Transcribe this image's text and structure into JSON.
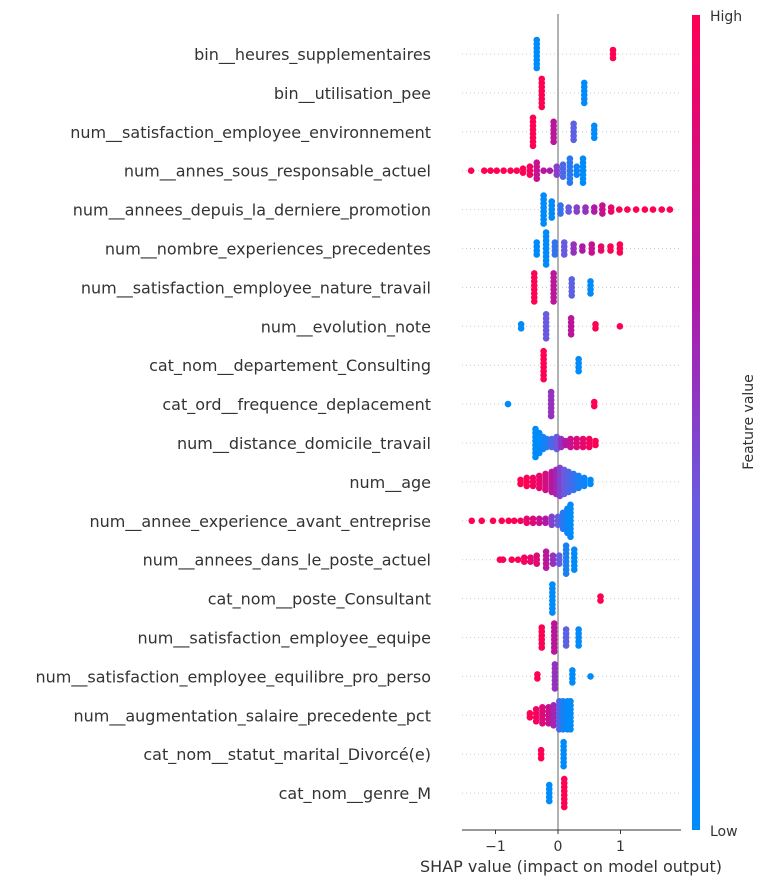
{
  "chart_data": {
    "type": "scatter",
    "subtype": "shap-beeswarm",
    "xlabel": "SHAP value (impact on model output)",
    "xlim": [
      -1.54,
      1.98
    ],
    "xticks": [
      -1,
      0,
      1
    ],
    "xtick_labels": [
      "−1",
      "0",
      "1"
    ],
    "grid": "dotted horizontal per feature",
    "colorbar": {
      "label": "Feature value",
      "high_label": "High",
      "low_label": "Low",
      "low_color": "#008bfb",
      "high_color": "#ff0052",
      "placement": "right"
    },
    "point_encoding": "each point: [shap value, normalized feature value 0-1, stacked count]",
    "features": [
      {
        "name": "bin__heures_supplementaires",
        "points": [
          [
            -0.34,
            0,
            8
          ],
          [
            0.88,
            1,
            3
          ]
        ]
      },
      {
        "name": "bin__utilisation_pee",
        "points": [
          [
            -0.26,
            1,
            8
          ],
          [
            0.42,
            0,
            6
          ]
        ]
      },
      {
        "name": "num__satisfaction_employee_environnement",
        "points": [
          [
            -0.4,
            1,
            8
          ],
          [
            -0.07,
            0.7,
            6
          ],
          [
            0.25,
            0.35,
            5
          ],
          [
            0.58,
            0,
            4
          ]
        ]
      },
      {
        "name": "num__annes_sous_responsable_actuel",
        "points": [
          [
            -1.39,
            1,
            1
          ],
          [
            -1.18,
            1,
            1
          ],
          [
            -1.08,
            1,
            1
          ],
          [
            -0.98,
            1,
            1
          ],
          [
            -0.87,
            1,
            1
          ],
          [
            -0.76,
            1,
            1
          ],
          [
            -0.66,
            1,
            1
          ],
          [
            -0.56,
            1,
            2
          ],
          [
            -0.45,
            0.95,
            3
          ],
          [
            -0.34,
            0.75,
            5
          ],
          [
            -0.23,
            0.7,
            1
          ],
          [
            -0.13,
            0.65,
            1
          ],
          [
            -0.02,
            0.5,
            3
          ],
          [
            0.08,
            0.3,
            4
          ],
          [
            0.19,
            0.15,
            7
          ],
          [
            0.3,
            0.05,
            3
          ],
          [
            0.4,
            0,
            7
          ]
        ]
      },
      {
        "name": "num__annees_depuis_la_derniere_promotion",
        "points": [
          [
            -0.23,
            0,
            8
          ],
          [
            -0.1,
            0,
            5
          ],
          [
            0.04,
            0.2,
            3
          ],
          [
            0.17,
            0.4,
            2
          ],
          [
            0.3,
            0.5,
            2
          ],
          [
            0.44,
            0.55,
            2
          ],
          [
            0.58,
            0.65,
            2
          ],
          [
            0.71,
            0.75,
            3
          ],
          [
            0.85,
            0.9,
            2
          ],
          [
            0.98,
            1,
            1
          ],
          [
            1.11,
            1,
            1
          ],
          [
            1.25,
            1,
            1
          ],
          [
            1.39,
            1,
            1
          ],
          [
            1.52,
            1,
            1
          ],
          [
            1.66,
            1,
            1
          ],
          [
            1.79,
            1,
            1
          ]
        ]
      },
      {
        "name": "num__nombre_experiences_precedentes",
        "points": [
          [
            -0.34,
            0,
            4
          ],
          [
            -0.19,
            0,
            9
          ],
          [
            -0.05,
            0.2,
            4
          ],
          [
            0.1,
            0.4,
            4
          ],
          [
            0.25,
            0.55,
            3
          ],
          [
            0.39,
            0.65,
            2
          ],
          [
            0.54,
            0.75,
            3
          ],
          [
            0.69,
            0.9,
            2
          ],
          [
            0.84,
            1,
            2
          ],
          [
            0.99,
            1,
            3
          ]
        ]
      },
      {
        "name": "num__satisfaction_employee_nature_travail",
        "points": [
          [
            -0.38,
            1,
            8
          ],
          [
            -0.07,
            0.7,
            8
          ],
          [
            0.22,
            0.35,
            5
          ],
          [
            0.52,
            0,
            4
          ]
        ]
      },
      {
        "name": "num__evolution_note",
        "points": [
          [
            -0.59,
            0,
            2
          ],
          [
            -0.19,
            0.4,
            7
          ],
          [
            0.21,
            0.7,
            5
          ],
          [
            0.6,
            1,
            2
          ],
          [
            0.99,
            1,
            1
          ]
        ]
      },
      {
        "name": "cat_nom__departement_Consulting",
        "points": [
          [
            -0.23,
            1,
            8
          ],
          [
            0.33,
            0,
            4
          ]
        ]
      },
      {
        "name": "cat_ord__frequence_deplacement",
        "points": [
          [
            -0.8,
            0,
            1
          ],
          [
            -0.11,
            0.55,
            7
          ],
          [
            0.58,
            1,
            2
          ]
        ]
      },
      {
        "name": "num__distance_domicile_travail",
        "points": [
          [
            -0.36,
            0,
            8
          ],
          [
            -0.3,
            0,
            6
          ],
          [
            -0.24,
            0.05,
            4
          ],
          [
            -0.18,
            0.1,
            3
          ],
          [
            -0.1,
            0.3,
            3
          ],
          [
            -0.02,
            0.4,
            4
          ],
          [
            0.05,
            0.55,
            3
          ],
          [
            0.12,
            0.65,
            2
          ],
          [
            0.2,
            0.75,
            3
          ],
          [
            0.3,
            0.85,
            3
          ],
          [
            0.4,
            0.9,
            3
          ],
          [
            0.5,
            0.95,
            3
          ],
          [
            0.6,
            1,
            2
          ]
        ]
      },
      {
        "name": "num__age",
        "points": [
          [
            -0.6,
            1,
            2
          ],
          [
            -0.5,
            1,
            3
          ],
          [
            -0.4,
            0.95,
            3
          ],
          [
            -0.3,
            0.9,
            4
          ],
          [
            -0.2,
            0.8,
            5
          ],
          [
            -0.1,
            0.7,
            6
          ],
          [
            -0.03,
            0.6,
            7
          ],
          [
            0.03,
            0.5,
            8
          ],
          [
            0.1,
            0.4,
            7
          ],
          [
            0.17,
            0.3,
            6
          ],
          [
            0.25,
            0.2,
            5
          ],
          [
            0.33,
            0.1,
            4
          ],
          [
            0.42,
            0.05,
            3
          ],
          [
            0.52,
            0,
            2
          ]
        ]
      },
      {
        "name": "num__annee_experience_avant_entreprise",
        "points": [
          [
            -1.38,
            1,
            1
          ],
          [
            -1.22,
            1,
            1
          ],
          [
            -1.04,
            1,
            1
          ],
          [
            -0.9,
            1,
            1
          ],
          [
            -0.79,
            1,
            1
          ],
          [
            -0.7,
            1,
            1
          ],
          [
            -0.6,
            0.95,
            1
          ],
          [
            -0.5,
            0.9,
            2
          ],
          [
            -0.4,
            0.85,
            2
          ],
          [
            -0.3,
            0.75,
            2
          ],
          [
            -0.2,
            0.65,
            2
          ],
          [
            -0.1,
            0.5,
            3
          ],
          [
            0.0,
            0.35,
            3
          ],
          [
            0.08,
            0.15,
            5
          ],
          [
            0.15,
            0.05,
            7
          ],
          [
            0.2,
            0,
            9
          ]
        ]
      },
      {
        "name": "num__annees_dans_le_poste_actuel",
        "points": [
          [
            -0.93,
            1,
            1
          ],
          [
            -0.88,
            1,
            1
          ],
          [
            -0.74,
            1,
            1
          ],
          [
            -0.64,
            1,
            1
          ],
          [
            -0.54,
            0.95,
            2
          ],
          [
            -0.44,
            0.9,
            2
          ],
          [
            -0.34,
            0.85,
            3
          ],
          [
            -0.19,
            0.7,
            5
          ],
          [
            -0.08,
            0.55,
            3
          ],
          [
            0.02,
            0.4,
            3
          ],
          [
            0.13,
            0.1,
            8
          ],
          [
            0.26,
            0,
            6
          ]
        ]
      },
      {
        "name": "cat_nom__poste_Consultant",
        "points": [
          [
            -0.09,
            0,
            8
          ],
          [
            0.68,
            1,
            2
          ]
        ]
      },
      {
        "name": "num__satisfaction_employee_equipe",
        "points": [
          [
            -0.26,
            1,
            6
          ],
          [
            -0.06,
            0.7,
            8
          ],
          [
            0.13,
            0.35,
            5
          ],
          [
            0.33,
            0,
            5
          ]
        ]
      },
      {
        "name": "num__satisfaction_employee_equilibre_pro_perso",
        "points": [
          [
            -0.33,
            1,
            2
          ],
          [
            -0.05,
            0.55,
            7
          ],
          [
            0.23,
            0,
            4
          ],
          [
            0.52,
            0,
            1
          ]
        ]
      },
      {
        "name": "num__augmentation_salaire_precedente_pct",
        "points": [
          [
            -0.45,
            1,
            2
          ],
          [
            -0.35,
            0.95,
            4
          ],
          [
            -0.25,
            0.85,
            5
          ],
          [
            -0.15,
            0.75,
            5
          ],
          [
            -0.07,
            0.6,
            6
          ],
          [
            0.02,
            0.3,
            8
          ],
          [
            0.08,
            0.1,
            8
          ],
          [
            0.15,
            0,
            8
          ],
          [
            0.2,
            0,
            8
          ]
        ]
      },
      {
        "name": "cat_nom__statut_marital_Divorcé(e)",
        "points": [
          [
            -0.27,
            1,
            3
          ],
          [
            0.09,
            0,
            7
          ]
        ]
      },
      {
        "name": "cat_nom__genre_M",
        "points": [
          [
            -0.14,
            0,
            5
          ],
          [
            0.1,
            1,
            8
          ]
        ]
      }
    ]
  }
}
